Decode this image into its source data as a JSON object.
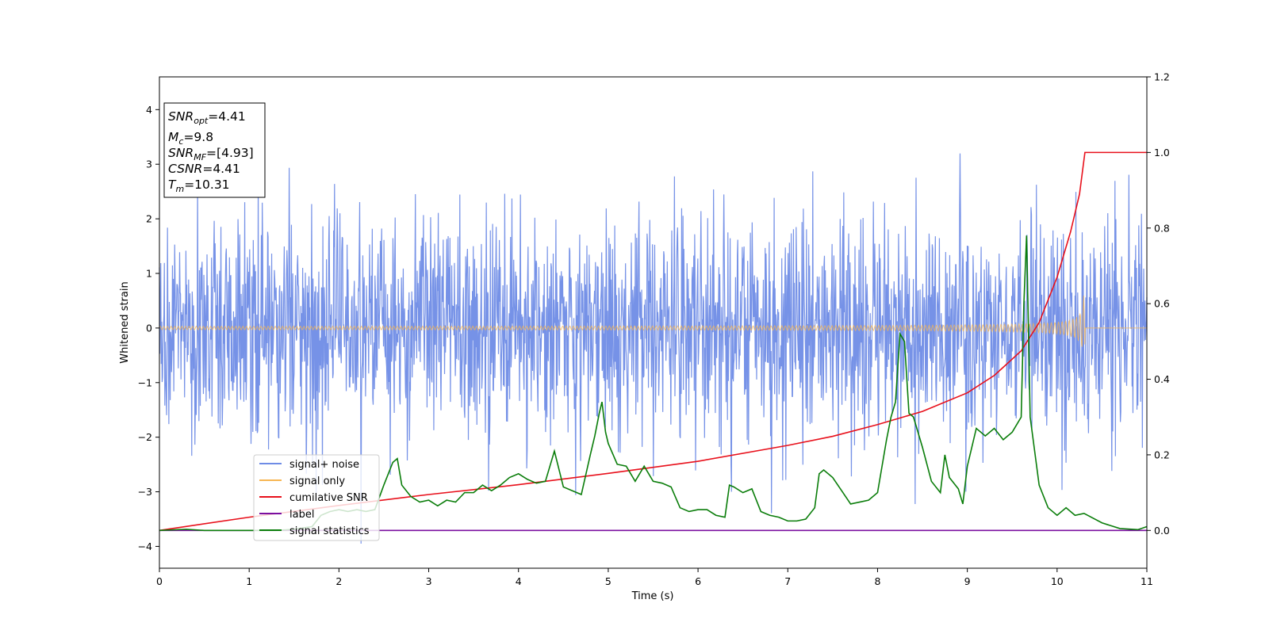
{
  "chart_data": {
    "type": "line",
    "xlabel": "Time (s)",
    "ylabel": "Whitened strain",
    "xlim": [
      0,
      11
    ],
    "ylim": [
      -4.4,
      4.6
    ],
    "y2lim": [
      -0.1,
      1.2
    ],
    "xticks": [
      "0",
      "1",
      "2",
      "3",
      "4",
      "5",
      "6",
      "7",
      "8",
      "9",
      "10",
      "11"
    ],
    "yticks": [
      "−4",
      "−3",
      "−2",
      "−1",
      "0",
      "1",
      "2",
      "3",
      "4"
    ],
    "y2ticks": [
      "0.0",
      "0.2",
      "0.4",
      "0.6",
      "0.8",
      "1.0",
      "1.2"
    ],
    "grid": false,
    "legend_position": "lower-left",
    "info_box": {
      "snr_opt": {
        "sym": "SNR",
        "sub": "opt",
        "val": "=4.41"
      },
      "mc": {
        "sym": "M",
        "sub": "c",
        "val": "=9.8"
      },
      "snr_mf": {
        "sym": "SNR",
        "sub": "MF",
        "val": "=[4.93]"
      },
      "csnr": {
        "sym": "CSNR",
        "sub": "",
        "val": "=4.41"
      },
      "tm": {
        "sym": "T",
        "sub": "m",
        "val": "=10.31"
      }
    },
    "series": [
      {
        "name": "signal+ noise",
        "color": "#6f8ce6",
        "axis": "left",
        "kind": "gaussian_noise",
        "std": 1.0,
        "t_start": 0,
        "t_end": 11,
        "samples": 2200
      },
      {
        "name": "signal only",
        "color": "#f7b652",
        "axis": "left",
        "kind": "chirp",
        "t_merger": 10.31,
        "amp_at_merger": 0.6,
        "amp_early": 0.02
      },
      {
        "name": "cumilative SNR",
        "color": "#e8101b",
        "axis": "right",
        "x": [
          0,
          1,
          2,
          3,
          4,
          5,
          6,
          7,
          7.5,
          8,
          8.5,
          9,
          9.3,
          9.6,
          9.8,
          10.0,
          10.15,
          10.25,
          10.31,
          11
        ],
        "y": [
          0.0,
          0.035,
          0.066,
          0.095,
          0.121,
          0.151,
          0.183,
          0.225,
          0.249,
          0.28,
          0.315,
          0.364,
          0.41,
          0.475,
          0.55,
          0.67,
          0.79,
          0.89,
          1.0,
          1.0
        ]
      },
      {
        "name": "label",
        "color": "#7b0fa0",
        "axis": "right",
        "x": [
          0,
          11
        ],
        "y": [
          0.0,
          0.0
        ]
      },
      {
        "name": "signal statistics",
        "color": "#0a7d0a",
        "axis": "right",
        "x": [
          0,
          0.3,
          0.5,
          0.8,
          1.0,
          1.3,
          1.5,
          1.7,
          1.8,
          1.9,
          2.0,
          2.1,
          2.2,
          2.3,
          2.4,
          2.5,
          2.6,
          2.65,
          2.7,
          2.8,
          2.9,
          3.0,
          3.1,
          3.2,
          3.3,
          3.4,
          3.5,
          3.6,
          3.7,
          3.8,
          3.9,
          4.0,
          4.1,
          4.15,
          4.2,
          4.3,
          4.4,
          4.5,
          4.6,
          4.7,
          4.8,
          4.85,
          4.9,
          4.93,
          4.97,
          5.0,
          5.1,
          5.2,
          5.3,
          5.4,
          5.5,
          5.6,
          5.7,
          5.8,
          5.9,
          6.0,
          6.1,
          6.2,
          6.3,
          6.35,
          6.4,
          6.5,
          6.6,
          6.7,
          6.8,
          6.9,
          7.0,
          7.1,
          7.2,
          7.3,
          7.35,
          7.4,
          7.5,
          7.6,
          7.7,
          7.8,
          7.9,
          8.0,
          8.1,
          8.15,
          8.2,
          8.25,
          8.3,
          8.35,
          8.4,
          8.5,
          8.6,
          8.7,
          8.75,
          8.8,
          8.9,
          8.95,
          9.0,
          9.1,
          9.2,
          9.3,
          9.4,
          9.5,
          9.6,
          9.63,
          9.66,
          9.7,
          9.8,
          9.9,
          10.0,
          10.1,
          10.2,
          10.3,
          10.5,
          10.7,
          10.9,
          11
        ],
        "y": [
          0.0,
          0.003,
          0.0,
          0.0,
          0.0,
          0.0,
          0.003,
          0.01,
          0.04,
          0.05,
          0.055,
          0.05,
          0.055,
          0.05,
          0.055,
          0.12,
          0.18,
          0.19,
          0.12,
          0.09,
          0.075,
          0.08,
          0.065,
          0.08,
          0.075,
          0.1,
          0.1,
          0.12,
          0.105,
          0.12,
          0.14,
          0.15,
          0.135,
          0.13,
          0.125,
          0.13,
          0.21,
          0.115,
          0.105,
          0.095,
          0.2,
          0.25,
          0.31,
          0.34,
          0.26,
          0.23,
          0.175,
          0.17,
          0.13,
          0.17,
          0.13,
          0.125,
          0.115,
          0.06,
          0.05,
          0.055,
          0.055,
          0.04,
          0.035,
          0.12,
          0.115,
          0.1,
          0.11,
          0.05,
          0.04,
          0.035,
          0.025,
          0.025,
          0.03,
          0.06,
          0.15,
          0.16,
          0.14,
          0.105,
          0.07,
          0.075,
          0.08,
          0.1,
          0.24,
          0.3,
          0.34,
          0.52,
          0.5,
          0.31,
          0.3,
          0.22,
          0.13,
          0.1,
          0.2,
          0.14,
          0.11,
          0.07,
          0.17,
          0.27,
          0.25,
          0.27,
          0.24,
          0.26,
          0.3,
          0.6,
          0.78,
          0.3,
          0.12,
          0.06,
          0.04,
          0.06,
          0.04,
          0.045,
          0.02,
          0.005,
          0.002,
          0.01
        ]
      }
    ]
  }
}
